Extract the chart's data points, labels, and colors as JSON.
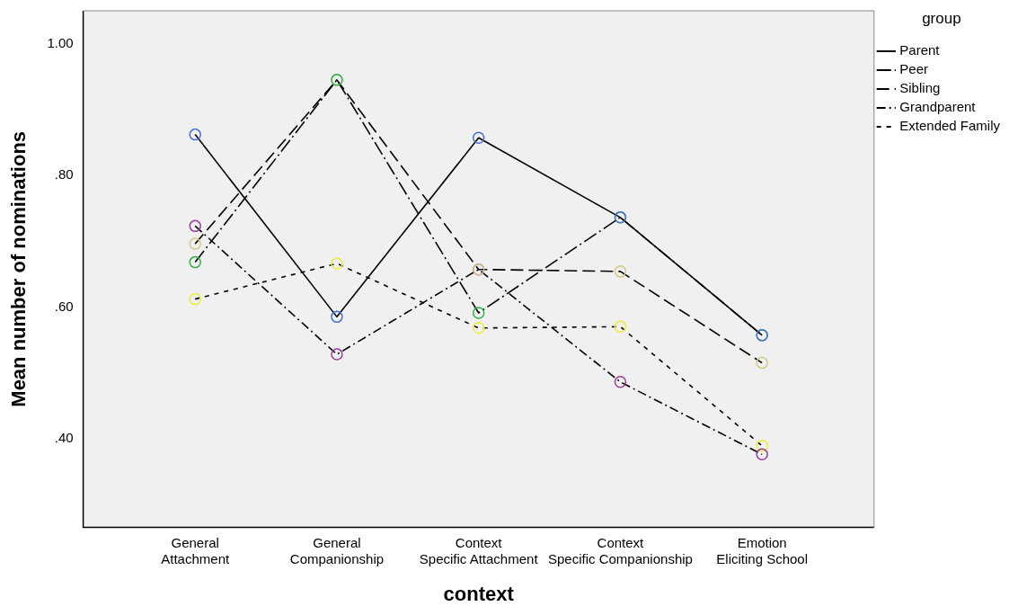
{
  "chart_data": {
    "type": "line",
    "xlabel": "context",
    "ylabel": "Mean number of nominations",
    "legend_title": "group",
    "categories": [
      "General Attachment",
      "General Companionship",
      "Context Specific Attachment",
      "Context Specific Companionship",
      "Emotion Eliciting School"
    ],
    "ylim": [
      0.265,
      1.05
    ],
    "yticks": [
      {
        "value": 0.4,
        "label": ".40"
      },
      {
        "value": 0.6,
        "label": ".60"
      },
      {
        "value": 0.8,
        "label": ".80"
      },
      {
        "value": 1,
        "label": "1.00"
      }
    ],
    "grid": false,
    "legend": "top right",
    "marker": "circle",
    "series": [
      {
        "name": "Parent",
        "color": "#4a6fd0",
        "line_style": "solid",
        "values": [
          0.862,
          0.585,
          0.857,
          0.736,
          0.557
        ]
      },
      {
        "name": "Peer",
        "color": "#2eb24a",
        "line_style": "longdashdot",
        "values": [
          0.668,
          0.945,
          0.591,
          0.736,
          0.557
        ]
      },
      {
        "name": "Sibling",
        "color": "#d4c98a",
        "line_style": "dashed",
        "values": [
          0.696,
          0.945,
          0.657,
          0.654,
          0.515
        ]
      },
      {
        "name": "Grandparent",
        "color": "#9b3d9b",
        "line_style": "dashdot",
        "values": [
          0.723,
          0.528,
          0.657,
          0.486,
          0.376
        ]
      },
      {
        "name": "Extended Family",
        "color": "#ecec3a",
        "line_style": "dotted",
        "values": [
          0.612,
          0.666,
          0.568,
          0.57,
          0.389
        ]
      }
    ]
  }
}
